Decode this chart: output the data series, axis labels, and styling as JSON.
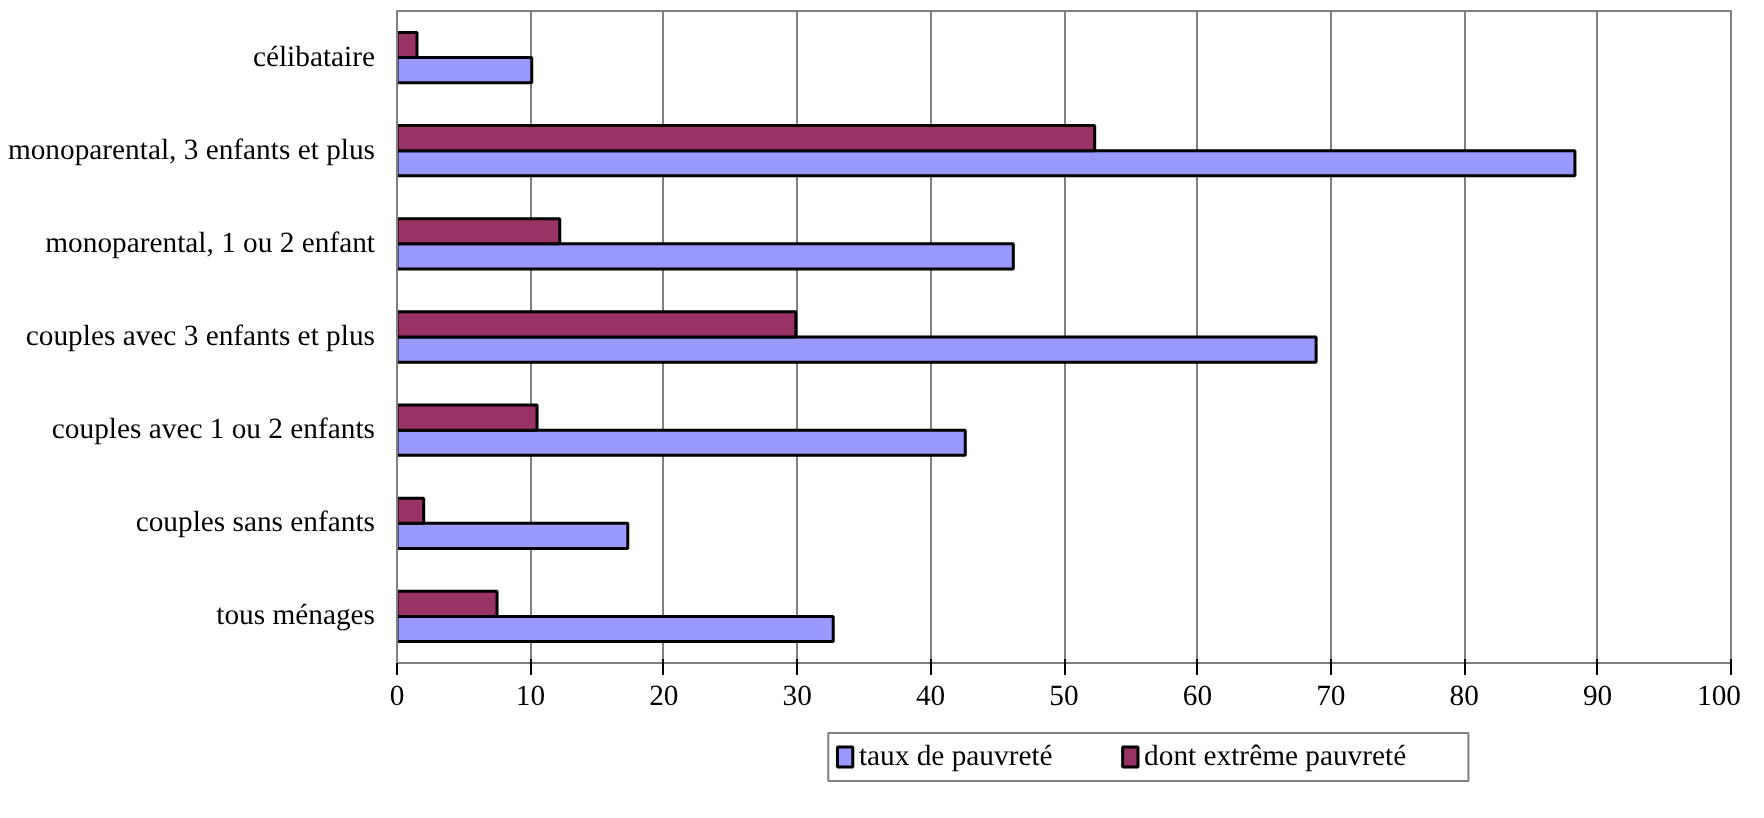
{
  "chart_data": {
    "type": "bar",
    "orientation": "horizontal",
    "categories": [
      "célibataire",
      "monoparental, 3 enfants et plus",
      "monoparental, 1 ou 2 enfant",
      "couples avec 3 enfants et plus",
      "couples avec 1 ou 2 enfants",
      "couples sans enfants",
      "tous ménages"
    ],
    "series": [
      {
        "name": "taux de pauvreté",
        "color": "#9999ff",
        "values": [
          10.1,
          88.3,
          46.2,
          68.9,
          42.6,
          17.3,
          32.7
        ]
      },
      {
        "name": "dont extrême pauvreté",
        "color": "#993366",
        "values": [
          1.5,
          52.3,
          12.2,
          29.9,
          10.5,
          2.0,
          7.5
        ]
      }
    ],
    "xlim": [
      0,
      100
    ],
    "xticks": [
      0,
      10,
      20,
      30,
      40,
      50,
      60,
      70,
      80,
      90,
      100
    ],
    "grid": "x",
    "legend": "bottom"
  }
}
